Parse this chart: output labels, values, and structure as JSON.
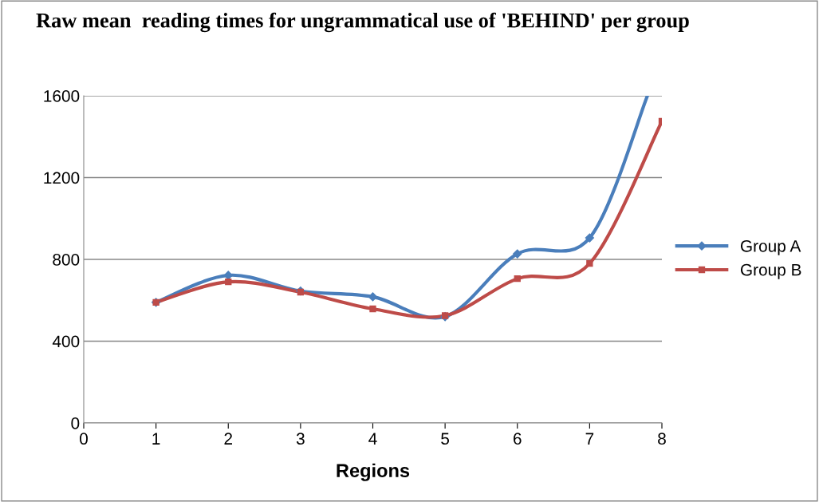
{
  "chart_data": {
    "type": "line",
    "title": "Raw mean  reading times for ungrammatical use of 'BEHIND' per group",
    "xlabel": "Regions",
    "series": [
      {
        "name": "Group A",
        "color": "#4a7ebb",
        "x": [
          1,
          2,
          3,
          4,
          5,
          6,
          7,
          7.8
        ],
        "values": [
          590,
          722,
          645,
          617,
          520,
          827,
          905,
          1600
        ],
        "marker": "diamond"
      },
      {
        "name": "Group B",
        "color": "#be4b48",
        "x": [
          1,
          2,
          3,
          4,
          5,
          6,
          7,
          8
        ],
        "values": [
          590,
          690,
          640,
          558,
          525,
          706,
          780,
          1475
        ],
        "marker": "square"
      }
    ],
    "xlim": [
      0,
      8
    ],
    "xticks": [
      0,
      1,
      2,
      3,
      4,
      5,
      6,
      7,
      8
    ],
    "ylim": [
      0,
      1600
    ],
    "yticks": [
      0,
      400,
      800,
      1200,
      1600
    ],
    "grid": "y",
    "legend": "right",
    "line_style": "solid"
  }
}
